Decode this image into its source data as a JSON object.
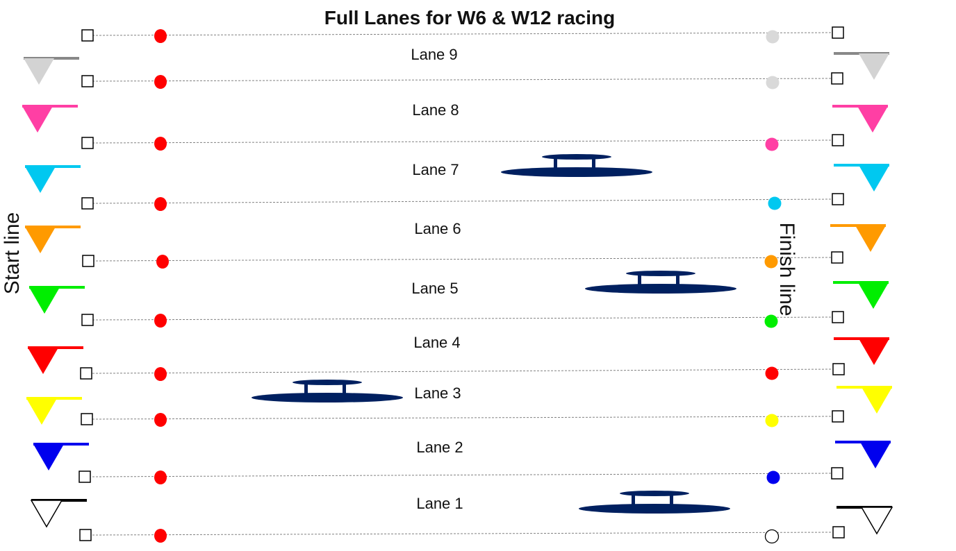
{
  "title": "Full Lanes for W6 & W12 racing",
  "start_label": "Start line",
  "finish_label": "Finish line",
  "lanes": [
    {
      "label": "Lane 9",
      "color": "#d3d3d3",
      "finish_buoy": "#d9d9d9"
    },
    {
      "label": "Lane 8",
      "color": "#ff3fa4",
      "finish_buoy": "#ff3fa4"
    },
    {
      "label": "Lane 7",
      "color": "#00c8f0",
      "finish_buoy": "#00c8f0"
    },
    {
      "label": "Lane 6",
      "color": "#ff9a00",
      "finish_buoy": "#ff9a00"
    },
    {
      "label": "Lane 5",
      "color": "#00ee00",
      "finish_buoy": "#00ee00"
    },
    {
      "label": "Lane 4",
      "color": "#ff0000",
      "finish_buoy": "#ff0000"
    },
    {
      "label": "Lane 3",
      "color": "#ffff00",
      "finish_buoy": "#ffff00"
    },
    {
      "label": "Lane 2",
      "color": "#0000ee",
      "finish_buoy": "#0000ee"
    },
    {
      "label": "Lane 1",
      "color": "#ffffff",
      "finish_buoy": "#ffffff"
    }
  ],
  "start_buoy_color": "#ff0000",
  "boat_color": "#002060",
  "boats_in_lanes": [
    "Lane 7",
    "Lane 5",
    "Lane 3",
    "Lane 1"
  ],
  "icons": {
    "lane_marker": "square-marker-icon",
    "buoy": "buoy-icon",
    "flag": "pennant-flag-icon",
    "boat": "racing-boat-icon"
  }
}
